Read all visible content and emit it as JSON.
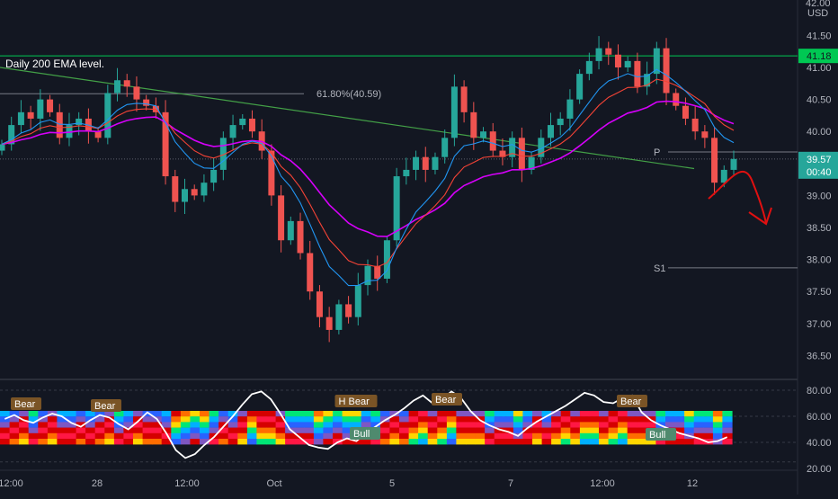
{
  "currency": "USD",
  "top_price_label": "42.00",
  "annotation_text": "Daily 200 EMA level.",
  "fib_label": "61.80%(40.59)",
  "pivot_label": "P",
  "s1_label": "S1",
  "price_badges": {
    "resistance": "41.18",
    "last_price": "39.57",
    "countdown": "00:40"
  },
  "colors": {
    "background": "#131722",
    "up_candle": "#26a69a",
    "down_candle": "#ef5350",
    "ema_blue": "#2196f3",
    "ema_red": "#f44336",
    "ema_200": "#d500f9",
    "resistance_line": "#00c853",
    "trendline": "#43a047",
    "projection": "#e01010",
    "oscillator_line": "#ffffff"
  },
  "chart_data": [
    {
      "type": "candlestick",
      "title": "",
      "xlabel": "",
      "ylabel": "",
      "y_axis_side": "right",
      "ylim": [
        36.2,
        42.0
      ],
      "y_ticks": [
        36.5,
        37.0,
        37.5,
        38.0,
        38.5,
        39.0,
        39.5,
        40.0,
        40.5,
        41.0,
        41.5
      ],
      "x_ticks": [
        "12:00",
        "28",
        "12:00",
        "Oct",
        "5",
        "7",
        "12:00",
        "12"
      ],
      "grid": false,
      "close_series": [
        39.8,
        40.1,
        40.3,
        40.2,
        40.5,
        40.3,
        39.9,
        40.1,
        40.2,
        40.0,
        39.9,
        40.6,
        40.8,
        40.7,
        40.5,
        40.4,
        40.3,
        39.3,
        38.9,
        39.1,
        39.0,
        39.2,
        39.4,
        39.9,
        40.1,
        40.2,
        40.0,
        39.7,
        39.0,
        38.3,
        38.6,
        38.1,
        37.5,
        37.1,
        36.9,
        37.3,
        37.1,
        37.6,
        37.9,
        37.7,
        38.3,
        39.3,
        39.4,
        39.6,
        39.4,
        39.6,
        39.9,
        40.7,
        40.3,
        39.9,
        40.0,
        39.7,
        39.6,
        39.9,
        39.4,
        39.6,
        39.9,
        40.1,
        40.2,
        40.5,
        40.9,
        41.1,
        41.3,
        41.2,
        41.0,
        41.1,
        40.7,
        40.9,
        41.3,
        40.6,
        40.4,
        40.2,
        40.0,
        39.9,
        39.2,
        39.4,
        39.57
      ],
      "lines": [
        {
          "name": "EMA 200",
          "values": [
            39.55,
            39.95
          ]
        },
        {
          "name": "EMA slow",
          "values": [
            39.82,
            40.05
          ]
        },
        {
          "name": "EMA fast",
          "values": [
            39.86,
            39.93
          ]
        }
      ],
      "levels": [
        {
          "label": "",
          "value": 41.18
        },
        {
          "label": "61.80%(40.59)",
          "value": 40.59
        },
        {
          "label": "P",
          "value": 39.57
        },
        {
          "label": "S1",
          "value": 37.87
        }
      ],
      "trendline": {
        "start": 41.0,
        "end": 39.42
      },
      "last_value": 39.57
    },
    {
      "type": "line",
      "title": "",
      "ylim": [
        20,
        80
      ],
      "y_ticks": [
        20.0,
        40.0,
        60.0,
        80.0
      ],
      "bands": [
        {
          "value": 80
        },
        {
          "value": 60
        },
        {
          "value": 40
        },
        {
          "value": 25
        }
      ],
      "values": [
        58,
        61,
        57,
        55,
        59,
        62,
        60,
        55,
        52,
        57,
        61,
        59,
        54,
        50,
        56,
        63,
        58,
        47,
        34,
        28,
        31,
        38,
        44,
        52,
        60,
        69,
        77,
        79,
        73,
        62,
        50,
        44,
        38,
        36,
        35,
        40,
        43,
        41,
        47,
        52,
        57,
        61,
        66,
        72,
        76,
        70,
        73,
        79,
        74,
        64,
        57,
        53,
        50,
        48,
        45,
        51,
        56,
        60,
        64,
        68,
        73,
        78,
        76,
        71,
        70,
        74,
        76,
        63,
        57,
        53,
        50,
        47,
        45,
        43,
        40,
        41,
        44
      ],
      "markers": [
        {
          "label": "Bear",
          "type": "bear"
        },
        {
          "label": "Bear",
          "type": "bear"
        },
        {
          "label": "H Bear",
          "type": "bear"
        },
        {
          "label": "Bear",
          "type": "bear"
        },
        {
          "label": "Bear",
          "type": "bear"
        },
        {
          "label": "Bull",
          "type": "bull"
        },
        {
          "label": "Bull",
          "type": "bull"
        }
      ]
    }
  ]
}
